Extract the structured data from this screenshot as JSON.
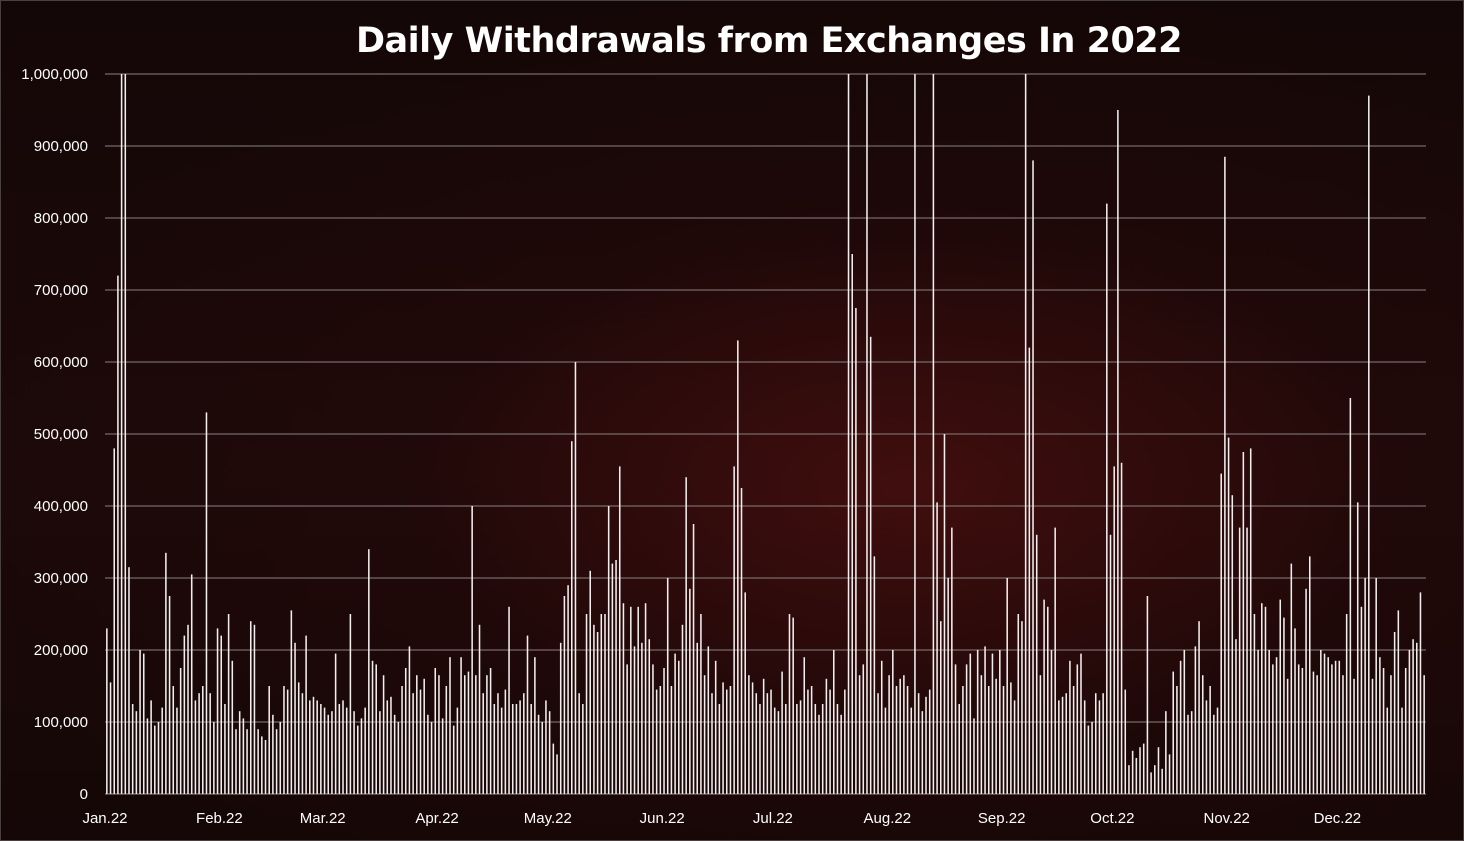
{
  "chart_data": {
    "type": "bar",
    "title": "Daily Withdrawals from Exchanges In 2022",
    "xlabel": "",
    "ylabel": "",
    "ylim": [
      0,
      1000000
    ],
    "yticks": [
      "0",
      "100,000",
      "200,000",
      "300,000",
      "400,000",
      "500,000",
      "600,000",
      "700,000",
      "800,000",
      "900,000",
      "1,000,000"
    ],
    "month_labels": [
      "Jan.22",
      "Feb.22",
      "Mar.22",
      "Apr.22",
      "May.22",
      "Jun.22",
      "Jul.22",
      "Aug.22",
      "Sep.22",
      "Oct.22",
      "Nov.22",
      "Dec.22"
    ],
    "grid": true,
    "legend": "none",
    "values": [
      230000,
      155000,
      480000,
      720000,
      1000000,
      1000000,
      315000,
      125000,
      115000,
      200000,
      195000,
      105000,
      130000,
      95000,
      100000,
      120000,
      335000,
      275000,
      150000,
      120000,
      175000,
      220000,
      235000,
      305000,
      130000,
      140000,
      150000,
      530000,
      140000,
      100000,
      230000,
      220000,
      125000,
      250000,
      185000,
      90000,
      115000,
      105000,
      90000,
      240000,
      235000,
      90000,
      80000,
      75000,
      150000,
      110000,
      90000,
      100000,
      150000,
      145000,
      255000,
      210000,
      155000,
      140000,
      220000,
      130000,
      135000,
      130000,
      125000,
      120000,
      110000,
      115000,
      195000,
      125000,
      130000,
      120000,
      250000,
      115000,
      95000,
      105000,
      120000,
      340000,
      185000,
      180000,
      115000,
      165000,
      130000,
      135000,
      110000,
      100000,
      150000,
      175000,
      205000,
      140000,
      165000,
      145000,
      160000,
      110000,
      100000,
      175000,
      165000,
      105000,
      150000,
      190000,
      95000,
      120000,
      190000,
      165000,
      170000,
      400000,
      165000,
      235000,
      140000,
      165000,
      175000,
      125000,
      140000,
      120000,
      145000,
      260000,
      125000,
      125000,
      130000,
      140000,
      220000,
      125000,
      190000,
      110000,
      100000,
      130000,
      115000,
      70000,
      55000,
      210000,
      275000,
      290000,
      490000,
      600000,
      140000,
      125000,
      250000,
      310000,
      235000,
      225000,
      250000,
      250000,
      400000,
      320000,
      325000,
      455000,
      265000,
      180000,
      260000,
      205000,
      260000,
      210000,
      265000,
      215000,
      180000,
      145000,
      150000,
      175000,
      300000,
      150000,
      195000,
      185000,
      235000,
      440000,
      285000,
      375000,
      210000,
      250000,
      165000,
      205000,
      140000,
      185000,
      125000,
      155000,
      145000,
      150000,
      455000,
      630000,
      425000,
      280000,
      165000,
      155000,
      140000,
      125000,
      160000,
      140000,
      145000,
      120000,
      115000,
      170000,
      125000,
      250000,
      245000,
      125000,
      130000,
      190000,
      145000,
      150000,
      125000,
      110000,
      125000,
      160000,
      145000,
      200000,
      125000,
      110000,
      145000,
      1000000,
      750000,
      675000,
      165000,
      180000,
      1000000,
      635000,
      330000,
      140000,
      185000,
      120000,
      165000,
      200000,
      150000,
      160000,
      165000,
      150000,
      120000,
      1000000,
      140000,
      115000,
      135000,
      145000,
      1000000,
      405000,
      240000,
      500000,
      300000,
      370000,
      180000,
      125000,
      150000,
      180000,
      195000,
      105000,
      200000,
      165000,
      205000,
      150000,
      195000,
      160000,
      200000,
      150000,
      300000,
      155000,
      130000,
      250000,
      240000,
      1000000,
      620000,
      880000,
      360000,
      165000,
      270000,
      260000,
      200000,
      370000,
      130000,
      135000,
      140000,
      185000,
      150000,
      180000,
      195000,
      130000,
      95000,
      100000,
      140000,
      130000,
      140000,
      820000,
      360000,
      455000,
      950000,
      460000,
      145000,
      40000,
      60000,
      50000,
      65000,
      70000,
      275000,
      30000,
      40000,
      65000,
      35000,
      115000,
      55000,
      170000,
      150000,
      185000,
      200000,
      110000,
      115000,
      205000,
      240000,
      165000,
      130000,
      150000,
      110000,
      120000,
      445000,
      885000,
      495000,
      415000,
      215000,
      370000,
      475000,
      370000,
      480000,
      250000,
      200000,
      265000,
      260000,
      200000,
      180000,
      190000,
      270000,
      245000,
      160000,
      320000,
      230000,
      180000,
      175000,
      285000,
      330000,
      170000,
      165000,
      200000,
      195000,
      190000,
      180000,
      185000,
      185000,
      165000,
      250000,
      550000,
      160000,
      405000,
      260000,
      300000,
      970000,
      160000,
      300000,
      190000,
      175000,
      120000,
      165000,
      225000,
      255000,
      120000,
      175000,
      200000,
      215000,
      210000,
      280000,
      165000
    ]
  }
}
